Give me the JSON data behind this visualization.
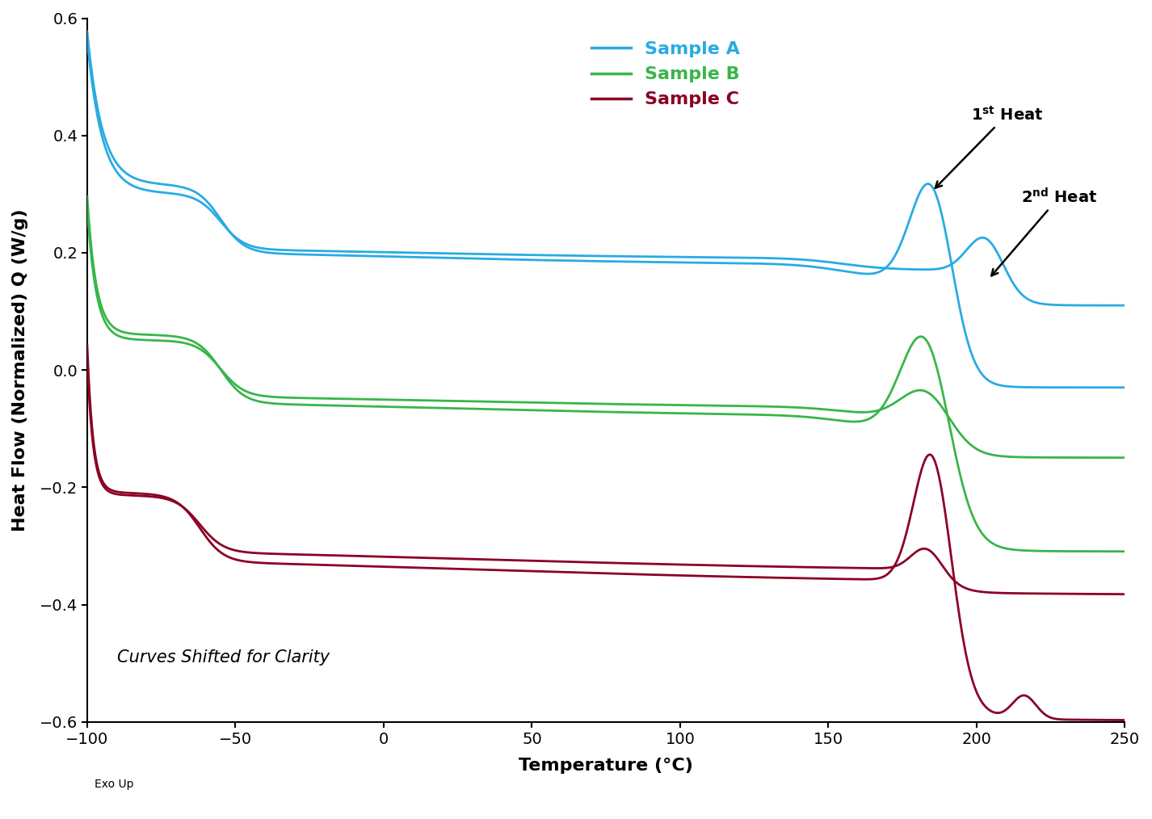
{
  "x_min": -100,
  "x_max": 250,
  "y_min": -0.6,
  "y_max": 0.6,
  "xlabel": "Temperature (°C)",
  "ylabel": "Heat Flow (Normalized) Q (W/g)",
  "exo_label": "Exo Up",
  "annotation_text": "Curves Shifted for Clarity",
  "color_A": "#29ABE2",
  "color_B": "#39B54A",
  "color_C": "#8B0025",
  "legend_labels": [
    "Sample A",
    "Sample B",
    "Sample C"
  ],
  "background_color": "#FFFFFF",
  "tick_label_size": 14,
  "axis_label_size": 16,
  "legend_label_size": 16
}
